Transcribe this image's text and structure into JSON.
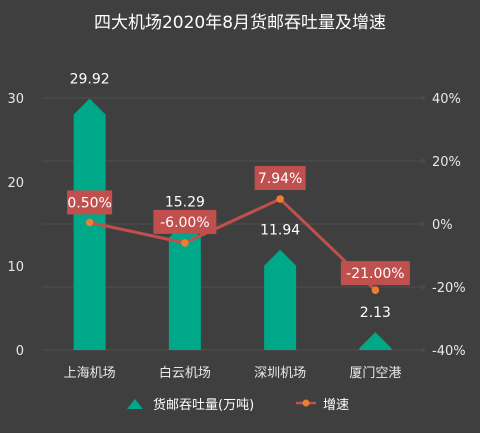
{
  "chart_data": {
    "type": "bar",
    "title": "四大机场2020年8月货邮吞吐量及增速",
    "categories": [
      "上海机场",
      "白云机场",
      "深圳机场",
      "厦门空港"
    ],
    "series": [
      {
        "name": "货邮吞吐量(万吨)",
        "type": "bar",
        "axis": "left",
        "values": [
          29.92,
          15.29,
          11.94,
          2.13
        ],
        "labels": [
          "29.92",
          "15.29",
          "11.94",
          "2.13"
        ],
        "color": "#00a88a"
      },
      {
        "name": "增速",
        "type": "line",
        "axis": "right",
        "values": [
          0.5,
          -6.0,
          7.94,
          -21.0
        ],
        "labels": [
          "0.50%",
          "-6.00%",
          "7.94%",
          "-21.00%"
        ],
        "color": "#c0504d",
        "marker_color": "#ed7d31"
      }
    ],
    "y_left": {
      "ylim": [
        0,
        30
      ],
      "ticks": [
        "0",
        "10",
        "20",
        "30"
      ]
    },
    "y_right": {
      "ylim": [
        -40,
        40
      ],
      "ticks": [
        "-40%",
        "-20%",
        "0%",
        "20%",
        "40%"
      ]
    },
    "grid": true,
    "legend_position": "bottom",
    "colors": {
      "background": "#3f3f3f",
      "bar": "#00a88a",
      "line": "#c0504d",
      "marker": "#ed7d31",
      "label_box": "#c0504d"
    }
  }
}
